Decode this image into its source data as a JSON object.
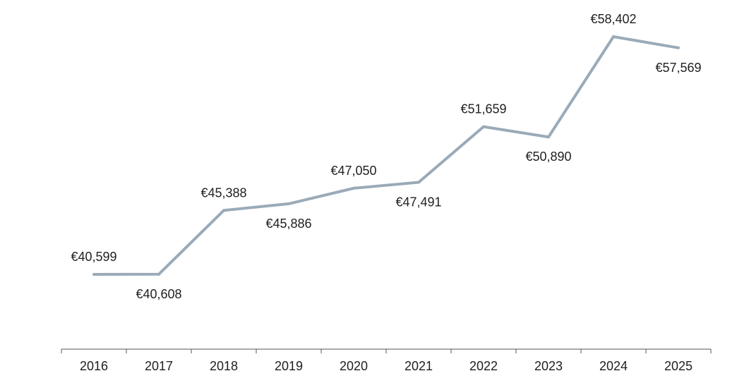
{
  "chart_data": {
    "type": "line",
    "categories": [
      "2016",
      "2017",
      "2018",
      "2019",
      "2020",
      "2021",
      "2022",
      "2023",
      "2024",
      "2025"
    ],
    "series": [
      {
        "values": [
          40599,
          40608,
          45388,
          45886,
          47050,
          47491,
          51659,
          50890,
          58402,
          57569
        ],
        "labels": [
          "€40,599",
          "€40,608",
          "€45,388",
          "€45,886",
          "€47,050",
          "€47,491",
          "€51,659",
          "€50,890",
          "€58,402",
          "€57,569"
        ],
        "label_positions": [
          "above",
          "below",
          "above",
          "below",
          "above",
          "below",
          "above",
          "below",
          "above",
          "below"
        ],
        "color": "#9aaab8"
      }
    ],
    "title": "",
    "xlabel": "",
    "ylabel": "",
    "ylim": [
      35900,
      60000
    ],
    "grid": false,
    "legend": "none",
    "axis_color": "#555555"
  }
}
